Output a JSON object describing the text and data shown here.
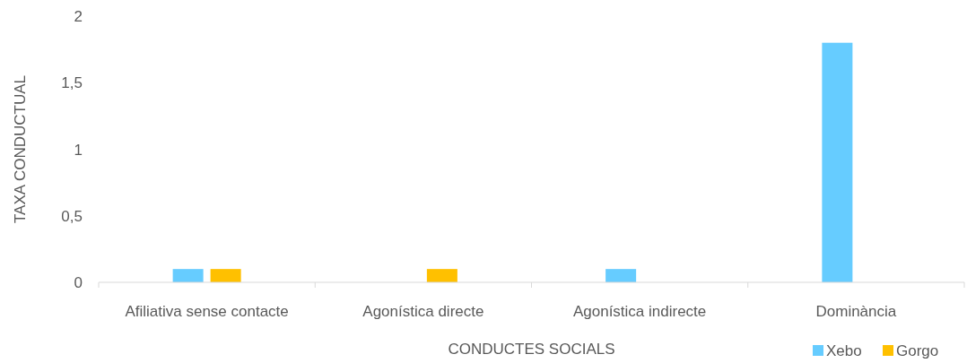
{
  "chart_data": {
    "type": "bar",
    "xlabel": "CONDUCTES SOCIALS",
    "ylabel": "TAXA CONDUCTUAL",
    "categories": [
      "Afiliativa sense contacte",
      "Agonística directe",
      "Agonística indirecte",
      "Dominància"
    ],
    "series": [
      {
        "name": "Xebo",
        "color": "#66ccff",
        "values": [
          0.1,
          0,
          0.1,
          1.8
        ]
      },
      {
        "name": "Gorgo",
        "color": "#ffc000",
        "values": [
          0.1,
          0.1,
          0,
          0
        ]
      }
    ],
    "ylim": [
      0,
      2
    ],
    "yticks": [
      0,
      {
        "value": 0.5,
        "label": "0,5"
      },
      1,
      {
        "value": 1.5,
        "label": "1,5"
      },
      2
    ],
    "legend": "bottom right"
  }
}
